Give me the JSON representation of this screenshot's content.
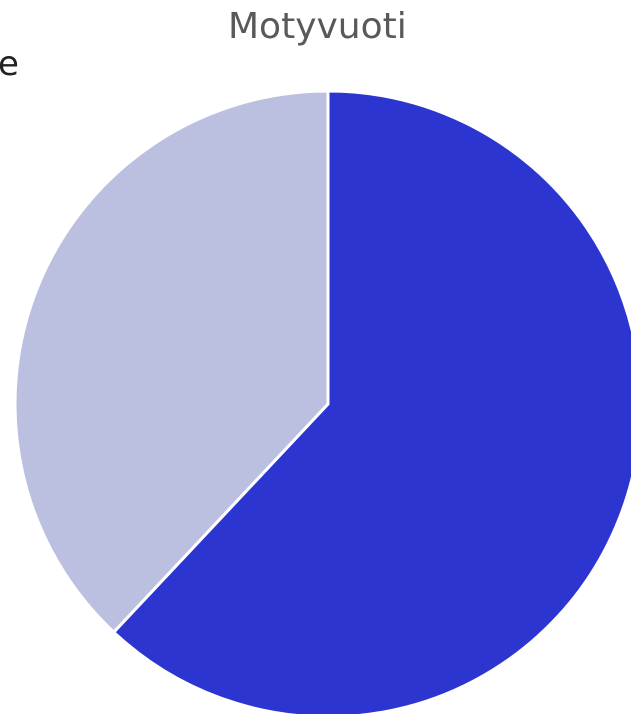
{
  "chart_data": {
    "type": "pie",
    "title": "Motyvuoti",
    "partial_label": "e",
    "slices": [
      {
        "value": 62,
        "color": "#2d35d0"
      },
      {
        "value": 38,
        "color": "#bcc0e0"
      }
    ],
    "start_angle_deg": 0,
    "direction": "clockwise"
  }
}
